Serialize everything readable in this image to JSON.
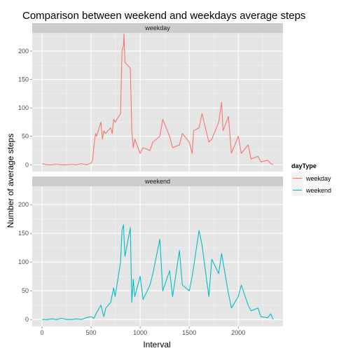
{
  "chart_data": {
    "type": "line",
    "title": "Comparison between weekend and weekdays average steps",
    "xlabel": "Interval",
    "ylabel": "Number of average steps",
    "xlim": [
      -100,
      2455
    ],
    "ylim": [
      -12,
      232
    ],
    "x_ticks": [
      0,
      500,
      1000,
      1500,
      2000
    ],
    "y_ticks": [
      0,
      50,
      100,
      150,
      200
    ],
    "grid": true,
    "legend": {
      "title": "dayType",
      "position": "right"
    },
    "facets": [
      {
        "name": "weekday",
        "color": "#F8766D",
        "x": [
          0,
          50,
          100,
          150,
          200,
          250,
          300,
          350,
          400,
          450,
          500,
          515,
          530,
          545,
          555,
          600,
          615,
          630,
          645,
          700,
          715,
          730,
          745,
          800,
          815,
          830,
          835,
          845,
          900,
          915,
          930,
          945,
          1000,
          1030,
          1100,
          1130,
          1200,
          1230,
          1300,
          1330,
          1400,
          1430,
          1500,
          1530,
          1545,
          1600,
          1630,
          1700,
          1730,
          1800,
          1830,
          1845,
          1900,
          1930,
          2000,
          2030,
          2100,
          2130,
          2200,
          2230,
          2300,
          2330,
          2355
        ],
        "y": [
          2,
          0,
          0,
          1,
          0,
          0,
          1,
          0,
          2,
          0,
          3,
          8,
          35,
          55,
          50,
          75,
          45,
          60,
          55,
          65,
          55,
          80,
          75,
          90,
          200,
          210,
          230,
          180,
          170,
          60,
          30,
          45,
          20,
          30,
          25,
          40,
          50,
          80,
          50,
          30,
          35,
          55,
          40,
          20,
          60,
          65,
          90,
          40,
          45,
          75,
          110,
          60,
          85,
          20,
          50,
          20,
          35,
          10,
          15,
          5,
          8,
          2,
          0
        ]
      },
      {
        "name": "weekend",
        "color": "#00BFC4",
        "x": [
          0,
          50,
          100,
          150,
          200,
          250,
          300,
          350,
          400,
          450,
          500,
          530,
          550,
          600,
          630,
          650,
          700,
          730,
          745,
          800,
          815,
          830,
          845,
          900,
          915,
          930,
          945,
          1000,
          1030,
          1100,
          1130,
          1200,
          1230,
          1300,
          1330,
          1400,
          1430,
          1500,
          1530,
          1600,
          1630,
          1700,
          1730,
          1800,
          1830,
          1900,
          1930,
          2000,
          2030,
          2100,
          2130,
          2200,
          2230,
          2300,
          2330,
          2355
        ],
        "y": [
          0,
          0,
          1,
          0,
          2,
          0,
          0,
          1,
          0,
          3,
          5,
          2,
          10,
          25,
          5,
          20,
          30,
          55,
          40,
          100,
          155,
          165,
          110,
          160,
          30,
          70,
          40,
          75,
          35,
          60,
          80,
          140,
          50,
          85,
          40,
          120,
          60,
          50,
          75,
          155,
          130,
          40,
          105,
          80,
          115,
          45,
          20,
          40,
          60,
          25,
          15,
          20,
          5,
          3,
          10,
          0
        ]
      }
    ]
  }
}
